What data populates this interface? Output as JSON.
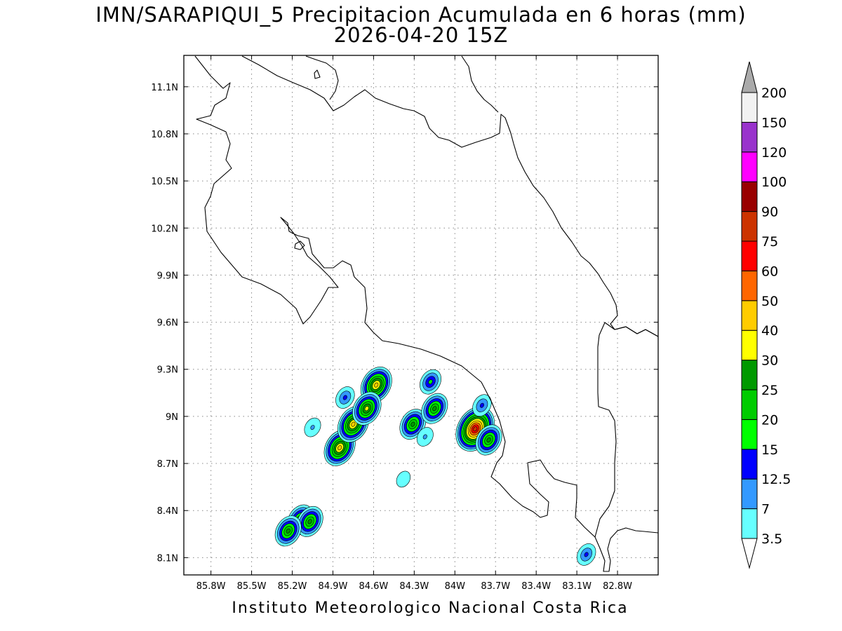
{
  "title_line1": "IMN/SARAPIQUI_5 Precipitacion Acumulada en 6 horas (mm)",
  "title_line2": "2026-04-20 15Z",
  "footer": "Instituto Meteorologico Nacional Costa Rica",
  "map": {
    "lon_labels": [
      "85.8W",
      "85.5W",
      "85.2W",
      "84.9W",
      "84.6W",
      "84.3W",
      "84W",
      "83.7W",
      "83.4W",
      "83.1W",
      "82.8W"
    ],
    "lat_labels": [
      "11.1N",
      "10.8N",
      "10.5N",
      "10.2N",
      "9.9N",
      "9.6N",
      "9.3N",
      "9N",
      "8.7N",
      "8.4N",
      "8.1N"
    ],
    "lon_values": [
      -85.8,
      -85.5,
      -85.2,
      -84.9,
      -84.6,
      -84.3,
      -84.0,
      -83.7,
      -83.4,
      -83.1,
      -82.8
    ],
    "lat_values": [
      11.1,
      10.8,
      10.5,
      10.2,
      9.9,
      9.6,
      9.3,
      9.0,
      8.7,
      8.4,
      8.1
    ],
    "lon_range": [
      -86.0,
      -82.5
    ],
    "lat_range": [
      7.99,
      11.3
    ],
    "grid": "dotted"
  },
  "colorbar": {
    "levels": [
      "3.5",
      "7",
      "12.5",
      "15",
      "20",
      "25",
      "30",
      "40",
      "50",
      "60",
      "75",
      "90",
      "100",
      "120",
      "150",
      "200"
    ],
    "colors": [
      "#66ffff",
      "#3399ff",
      "#0000ff",
      "#00ff00",
      "#00cc00",
      "#009900",
      "#ffff00",
      "#ffcc00",
      "#ff6600",
      "#ff0000",
      "#cc3300",
      "#990000",
      "#ff00ff",
      "#9933cc",
      "#f2f2f2",
      "#aaaaaa"
    ],
    "over_color": "#aaaaaa",
    "under_color": "#ffffff"
  },
  "precip_cells": [
    {
      "lon": -84.85,
      "lat": 8.8,
      "value": 40
    },
    {
      "lon": -84.75,
      "lat": 8.95,
      "value": 40
    },
    {
      "lon": -84.58,
      "lat": 9.2,
      "value": 40
    },
    {
      "lon": -84.65,
      "lat": 9.05,
      "value": 30
    },
    {
      "lon": -83.85,
      "lat": 8.92,
      "value": 75
    },
    {
      "lon": -83.75,
      "lat": 8.85,
      "value": 25
    },
    {
      "lon": -83.8,
      "lat": 9.07,
      "value": 12.5
    },
    {
      "lon": -84.31,
      "lat": 8.95,
      "value": 25
    },
    {
      "lon": -84.15,
      "lat": 9.05,
      "value": 25
    },
    {
      "lon": -84.18,
      "lat": 9.22,
      "value": 15
    },
    {
      "lon": -84.81,
      "lat": 9.12,
      "value": 12.5
    },
    {
      "lon": -85.14,
      "lat": 8.34,
      "value": 25
    },
    {
      "lon": -85.07,
      "lat": 8.33,
      "value": 25
    },
    {
      "lon": -85.23,
      "lat": 8.27,
      "value": 25
    },
    {
      "lon": -83.03,
      "lat": 8.12,
      "value": 12.5
    },
    {
      "lon": -84.22,
      "lat": 8.87,
      "value": 7
    },
    {
      "lon": -85.05,
      "lat": 8.93,
      "value": 7
    },
    {
      "lon": -84.38,
      "lat": 8.6,
      "value": 3.5
    }
  ]
}
